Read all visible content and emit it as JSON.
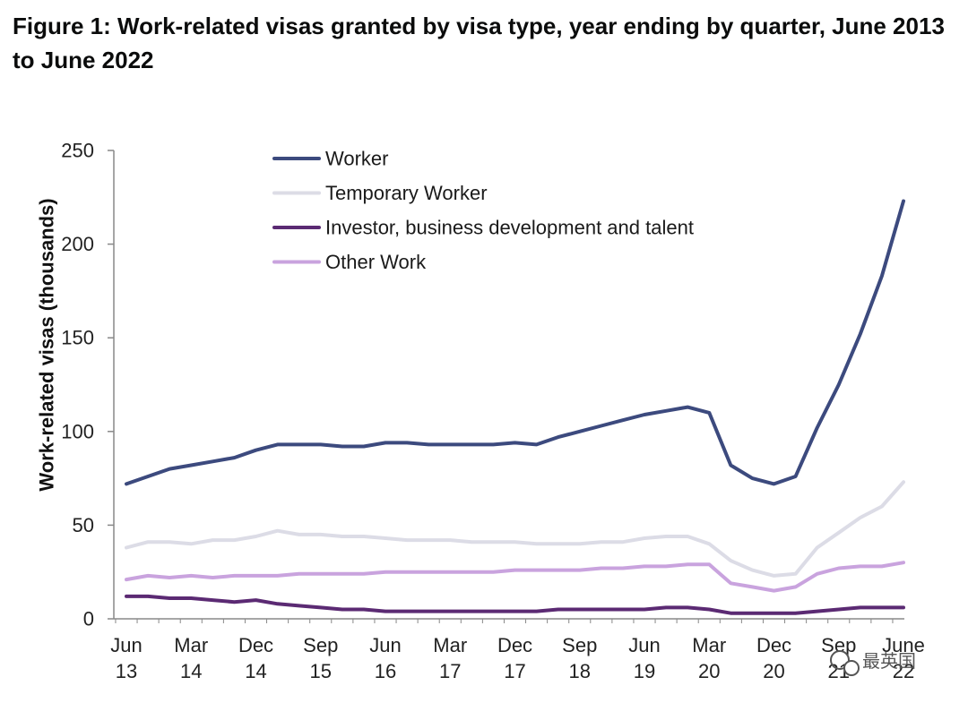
{
  "chart_data": {
    "type": "line",
    "title": "Figure 1: Work-related visas granted by visa type, year ending by quarter, June 2013 to June 2022",
    "ylabel": "Work-related visas (thousands)",
    "xlabel": "",
    "ylim": [
      0,
      250
    ],
    "yticks": [
      0,
      50,
      100,
      150,
      200,
      250
    ],
    "grid": false,
    "legend_position": "top-left",
    "x": [
      "Jun 13",
      "Sep 13",
      "Dec 13",
      "Mar 14",
      "Jun 14",
      "Sep 14",
      "Dec 14",
      "Mar 15",
      "Jun 15",
      "Sep 15",
      "Dec 15",
      "Mar 16",
      "Jun 16",
      "Sep 16",
      "Dec 16",
      "Mar 17",
      "Jun 17",
      "Sep 17",
      "Dec 17",
      "Mar 18",
      "Jun 18",
      "Sep 18",
      "Dec 18",
      "Mar 19",
      "Jun 19",
      "Sep 19",
      "Dec 19",
      "Mar 20",
      "Jun 20",
      "Sep 20",
      "Dec 20",
      "Mar 21",
      "Jun 21",
      "Sep 21",
      "Dec 21",
      "Mar 22",
      "June 22"
    ],
    "xtick_labels": [
      {
        "index": 0,
        "line1": "Jun",
        "line2": "13"
      },
      {
        "index": 3,
        "line1": "Mar",
        "line2": "14"
      },
      {
        "index": 6,
        "line1": "Dec",
        "line2": "14"
      },
      {
        "index": 9,
        "line1": "Sep",
        "line2": "15"
      },
      {
        "index": 12,
        "line1": "Jun",
        "line2": "16"
      },
      {
        "index": 15,
        "line1": "Mar",
        "line2": "17"
      },
      {
        "index": 18,
        "line1": "Dec",
        "line2": "17"
      },
      {
        "index": 21,
        "line1": "Sep",
        "line2": "18"
      },
      {
        "index": 24,
        "line1": "Jun",
        "line2": "19"
      },
      {
        "index": 27,
        "line1": "Mar",
        "line2": "20"
      },
      {
        "index": 30,
        "line1": "Dec",
        "line2": "20"
      },
      {
        "index": 33,
        "line1": "Sep",
        "line2": "21"
      },
      {
        "index": 36,
        "line1": "June",
        "line2": "22"
      }
    ],
    "series": [
      {
        "name": "Worker",
        "color": "#3c4a7e",
        "values": [
          72,
          76,
          80,
          82,
          84,
          86,
          90,
          93,
          93,
          93,
          92,
          92,
          94,
          94,
          93,
          93,
          93,
          93,
          94,
          93,
          97,
          100,
          103,
          106,
          109,
          111,
          113,
          110,
          82,
          75,
          72,
          76,
          102,
          125,
          152,
          183,
          223
        ]
      },
      {
        "name": "Temporary Worker",
        "color": "#dcdce6",
        "values": [
          38,
          41,
          41,
          40,
          42,
          42,
          44,
          47,
          45,
          45,
          44,
          44,
          43,
          42,
          42,
          42,
          41,
          41,
          41,
          40,
          40,
          40,
          41,
          41,
          43,
          44,
          44,
          40,
          31,
          26,
          23,
          24,
          38,
          46,
          54,
          60,
          73
        ]
      },
      {
        "name": "Investor, business development and talent",
        "color": "#5b2a73",
        "values": [
          12,
          12,
          11,
          11,
          10,
          9,
          10,
          8,
          7,
          6,
          5,
          5,
          4,
          4,
          4,
          4,
          4,
          4,
          4,
          4,
          5,
          5,
          5,
          5,
          5,
          6,
          6,
          5,
          3,
          3,
          3,
          3,
          4,
          5,
          6,
          6,
          6
        ]
      },
      {
        "name": "Other Work",
        "color": "#c9a3de",
        "values": [
          21,
          23,
          22,
          23,
          22,
          23,
          23,
          23,
          24,
          24,
          24,
          24,
          25,
          25,
          25,
          25,
          25,
          25,
          26,
          26,
          26,
          26,
          27,
          27,
          28,
          28,
          29,
          29,
          19,
          17,
          15,
          17,
          24,
          27,
          28,
          28,
          30
        ]
      }
    ]
  },
  "watermark": {
    "text": "最英国",
    "icon": "wechat-icon"
  }
}
